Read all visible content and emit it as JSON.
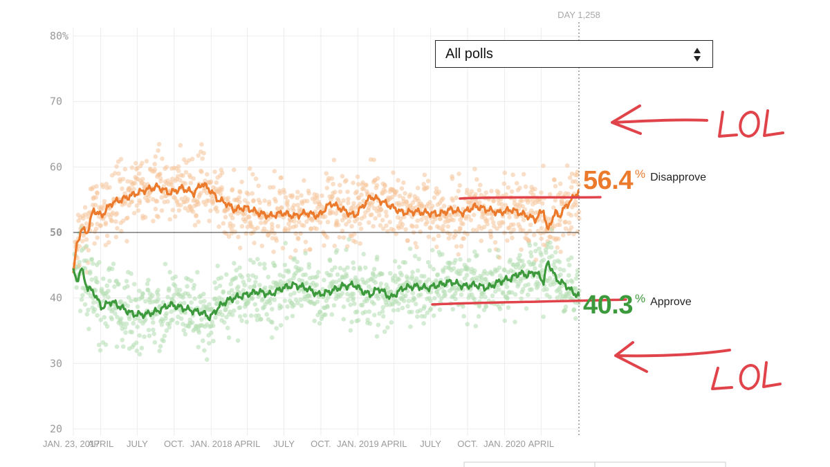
{
  "day_marker": {
    "label": "DAY 1,258",
    "day": 1258
  },
  "dropdown": {
    "selected": "All polls"
  },
  "results": {
    "disapprove": {
      "value": "56.4",
      "unit": "%",
      "label": "Disapprove"
    },
    "approve": {
      "value": "40.3",
      "unit": "%",
      "label": "Approve"
    }
  },
  "annotations": {
    "upper": "LOL",
    "lower": "LOL"
  },
  "colors": {
    "disapprove": "#ec7a2c",
    "approve": "#3c9a3c",
    "disapprove_dots": "#f6c49a",
    "approve_dots": "#b7e0b6",
    "annotation": "#e0434a"
  },
  "chart_data": {
    "type": "line",
    "title": "",
    "xlabel": "",
    "ylabel": "",
    "ylim": [
      20,
      80
    ],
    "xlim": [
      0,
      1258
    ],
    "y_ticks": [
      20,
      30,
      40,
      50,
      60,
      70,
      80
    ],
    "y_tick_labels": [
      "20",
      "30",
      "40",
      "50",
      "60",
      "70",
      "80%"
    ],
    "x_ticks": [
      {
        "day": 0,
        "label": "JAN. 23, 2017"
      },
      {
        "day": 68,
        "label": "APRIL"
      },
      {
        "day": 159,
        "label": "JULY"
      },
      {
        "day": 251,
        "label": "OCT."
      },
      {
        "day": 343,
        "label": "JAN. 2018"
      },
      {
        "day": 433,
        "label": "APRIL"
      },
      {
        "day": 524,
        "label": "JULY"
      },
      {
        "day": 616,
        "label": "OCT."
      },
      {
        "day": 708,
        "label": "JAN. 2019"
      },
      {
        "day": 798,
        "label": "APRIL"
      },
      {
        "day": 889,
        "label": "JULY"
      },
      {
        "day": 981,
        "label": "OCT."
      },
      {
        "day": 1073,
        "label": "JAN. 2020"
      },
      {
        "day": 1164,
        "label": "APRIL"
      }
    ],
    "x_days": [
      0,
      8,
      20,
      35,
      50,
      70,
      95,
      120,
      150,
      180,
      210,
      240,
      270,
      300,
      320,
      340,
      360,
      380,
      400,
      430,
      460,
      490,
      520,
      550,
      580,
      610,
      640,
      670,
      700,
      720,
      740,
      760,
      790,
      820,
      850,
      880,
      910,
      940,
      970,
      1000,
      1030,
      1060,
      1090,
      1110,
      1130,
      1150,
      1170,
      1180,
      1190,
      1200,
      1210,
      1225,
      1240,
      1258
    ],
    "series": [
      {
        "name": "Disapprove",
        "values": [
          43.8,
          48.0,
          50.5,
          50.0,
          53.5,
          52.5,
          54.5,
          55.0,
          55.8,
          56.5,
          57.0,
          56.0,
          56.8,
          56.0,
          57.5,
          56.5,
          55.0,
          54.5,
          53.5,
          53.8,
          53.0,
          52.5,
          53.0,
          52.5,
          53.0,
          52.5,
          54.5,
          53.5,
          52.5,
          54.0,
          55.5,
          55.0,
          54.0,
          53.0,
          53.2,
          53.0,
          52.8,
          53.5,
          53.0,
          54.0,
          53.5,
          53.0,
          53.5,
          53.0,
          52.5,
          52.0,
          53.5,
          50.0,
          52.0,
          53.0,
          52.5,
          54.0,
          55.0,
          56.4
        ]
      },
      {
        "name": "Approve",
        "values": [
          44.5,
          42.5,
          44.5,
          41.5,
          41.0,
          38.5,
          39.5,
          38.5,
          37.5,
          37.5,
          38.0,
          39.0,
          38.5,
          38.0,
          37.8,
          37.0,
          38.5,
          39.5,
          40.0,
          40.5,
          41.0,
          40.5,
          41.5,
          42.0,
          41.5,
          40.5,
          41.0,
          41.8,
          42.0,
          41.0,
          40.5,
          41.5,
          40.0,
          41.5,
          41.8,
          41.5,
          42.0,
          42.5,
          41.8,
          42.0,
          41.5,
          42.5,
          43.0,
          43.8,
          43.5,
          44.0,
          42.5,
          45.5,
          44.5,
          43.0,
          42.5,
          42.0,
          41.0,
          40.3
        ]
      }
    ]
  }
}
